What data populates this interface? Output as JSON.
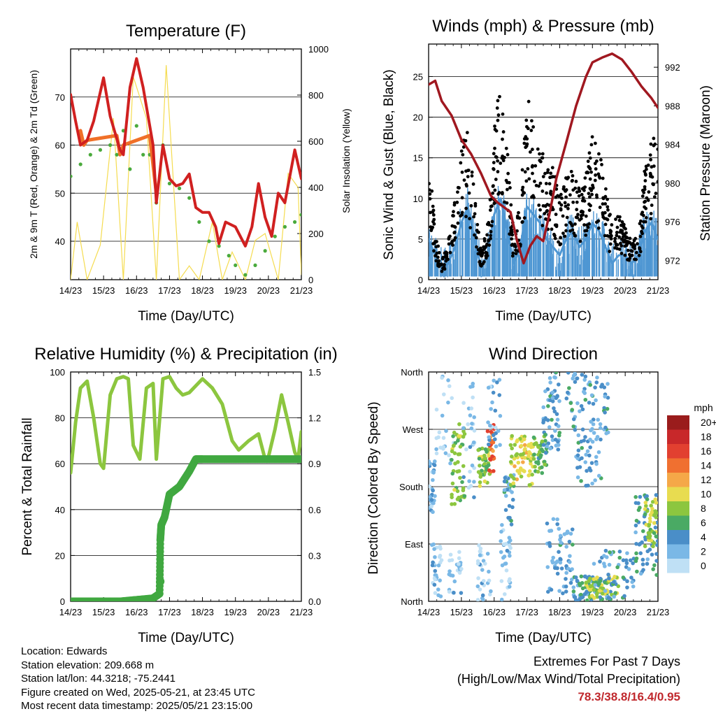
{
  "chart_data": [
    {
      "type": "line",
      "title": "Temperature (F)",
      "xlabel": "Time (Day/UTC)",
      "ylabel": "2m & 9m T (Red, Orange) & 2m Td (Green)",
      "ylabel_right": "Solar Insolation (Yellow)",
      "xticks": [
        "14/23",
        "15/23",
        "16/23",
        "17/23",
        "18/23",
        "19/23",
        "20/23",
        "21/23"
      ],
      "xlim": [
        0,
        7
      ],
      "ylim": [
        32,
        80
      ],
      "yticks": [
        40,
        50,
        60,
        70
      ],
      "ylim_right": [
        0,
        1000
      ],
      "yticks_right": [
        0,
        200,
        400,
        600,
        800,
        1000
      ],
      "grid": true,
      "colors": {
        "t2m": "#d02020",
        "t9m": "#f07028",
        "td": "#4aaa3c",
        "solar": "#f5dc50"
      },
      "series": [
        {
          "name": "2m T",
          "color": "#d02020",
          "x": [
            0,
            0.15,
            0.3,
            0.5,
            0.7,
            0.9,
            1.0,
            1.2,
            1.5,
            1.6,
            1.8,
            2.0,
            2.2,
            2.5,
            2.6,
            2.8,
            3.0,
            3.2,
            3.4,
            3.6,
            3.8,
            4.0,
            4.2,
            4.4,
            4.5,
            4.7,
            5.0,
            5.3,
            5.5,
            5.7,
            5.9,
            6.1,
            6.3,
            6.5,
            6.8,
            7.0
          ],
          "y": [
            70.5,
            65,
            60,
            61,
            65,
            71,
            74,
            66,
            59,
            58,
            72,
            78,
            72,
            60,
            48,
            60,
            53,
            51.5,
            52,
            54,
            47,
            46,
            46,
            43,
            39.5,
            44,
            43,
            39,
            43,
            52,
            45,
            41,
            50,
            48,
            59,
            53
          ]
        },
        {
          "name": "9m T",
          "color": "#f07028",
          "x": [
            0.3,
            0.4,
            0.5,
            1.4,
            1.5,
            1.6,
            2.4,
            2.6
          ],
          "y": [
            63,
            60,
            61,
            62,
            58,
            60,
            62,
            50
          ]
        },
        {
          "name": "2m Td",
          "color": "#4aaa3c",
          "x": [
            0,
            0.3,
            0.6,
            0.9,
            1.2,
            1.4,
            1.6,
            1.8,
            2.0,
            2.2,
            2.4,
            2.6,
            2.8,
            3.0,
            3.3,
            3.6,
            3.9,
            4.2,
            4.5,
            4.8,
            5.0,
            5.3,
            5.6,
            5.9,
            6.2,
            6.5,
            6.8,
            7.0
          ],
          "y": [
            53.5,
            56,
            58,
            59,
            60,
            58,
            63,
            55,
            64,
            58,
            58,
            48,
            60,
            52,
            51,
            49,
            44,
            40,
            39,
            37,
            35,
            33,
            35,
            38,
            41,
            43,
            44,
            45.5
          ]
        },
        {
          "name": "Solar Insolation",
          "color": "#f5dc50",
          "axis": "right",
          "x": [
            0,
            0.2,
            0.5,
            0.9,
            1.3,
            1.6,
            1.9,
            2.3,
            2.6,
            2.9,
            3.3,
            3.6,
            3.9,
            4.3,
            4.6,
            4.9,
            5.3,
            5.6,
            5.9,
            6.3,
            6.6,
            6.9,
            7.0
          ],
          "y": [
            0,
            250,
            0,
            150,
            700,
            0,
            880,
            700,
            0,
            930,
            0,
            60,
            0,
            250,
            0,
            120,
            0,
            170,
            200,
            0,
            460,
            400,
            20
          ]
        }
      ]
    },
    {
      "type": "line",
      "title": "Winds (mph) & Pressure (mb)",
      "xlabel": "Time (Day/UTC)",
      "ylabel": "Sonic Wind & Gust (Blue, Black)",
      "ylabel_right": "Station Pressure (Maroon)",
      "xticks": [
        "14/23",
        "15/23",
        "16/23",
        "17/23",
        "18/23",
        "19/23",
        "20/23",
        "21/23"
      ],
      "xlim": [
        0,
        7
      ],
      "ylim": [
        0,
        29
      ],
      "yticks": [
        0,
        5,
        10,
        15,
        20,
        25
      ],
      "ylim_right": [
        970.0,
        994.4
      ],
      "yticks_right": [
        972,
        976,
        980,
        984,
        988,
        992
      ],
      "grid": true,
      "colors": {
        "wind": "#4f97d3",
        "gust": "#000000",
        "pressure": "#a01820"
      },
      "series": [
        {
          "name": "Sonic Wind",
          "color": "#4f97d3",
          "x": [
            0,
            0.2,
            0.4,
            0.6,
            0.8,
            1.0,
            1.2,
            1.4,
            1.6,
            1.8,
            2.0,
            2.2,
            2.4,
            2.6,
            2.8,
            3.0,
            3.2,
            3.4,
            3.6,
            3.8,
            4.0,
            4.2,
            4.4,
            4.6,
            4.8,
            5.0,
            5.2,
            5.4,
            5.6,
            5.8,
            6.0,
            6.2,
            6.4,
            6.6,
            6.8,
            7.0
          ],
          "y": [
            5,
            3,
            1.5,
            2,
            4,
            7,
            9,
            5,
            1.5,
            3,
            8,
            10,
            6,
            2,
            4,
            9,
            8,
            7,
            5,
            4,
            3,
            5,
            6,
            4,
            5,
            7,
            6,
            4,
            2,
            3,
            3,
            2,
            3,
            6,
            7,
            5
          ]
        },
        {
          "name": "Gust",
          "color": "#000000",
          "x": [
            0,
            0.2,
            0.4,
            0.6,
            0.8,
            1.0,
            1.2,
            1.4,
            1.6,
            1.8,
            2.0,
            2.2,
            2.4,
            2.6,
            2.8,
            3.0,
            3.2,
            3.4,
            3.6,
            3.8,
            4.0,
            4.2,
            4.4,
            4.6,
            4.8,
            5.0,
            5.2,
            5.4,
            5.6,
            5.8,
            6.0,
            6.2,
            6.4,
            6.6,
            6.8,
            7.0
          ],
          "y": [
            15,
            5,
            2,
            4,
            9,
            15,
            16,
            10,
            3,
            6,
            16,
            25,
            14,
            5,
            9,
            20,
            18,
            15,
            13,
            12,
            9,
            11,
            12,
            10,
            11,
            16,
            14,
            10,
            6,
            7,
            6,
            4,
            5,
            12,
            15,
            16
          ]
        },
        {
          "name": "Station Pressure",
          "color": "#a01820",
          "axis": "right",
          "x": [
            0,
            0.2,
            0.4,
            0.7,
            1.0,
            1.3,
            1.6,
            1.9,
            2.1,
            2.3,
            2.5,
            2.7,
            2.9,
            3.1,
            3.3,
            3.5,
            3.7,
            3.9,
            4.2,
            4.5,
            4.8,
            5.0,
            5.3,
            5.6,
            5.9,
            6.2,
            6.5,
            6.8,
            7.0
          ],
          "y": [
            990.2,
            990.6,
            988.5,
            987,
            984.5,
            983,
            981,
            978.7,
            978,
            977.5,
            977,
            974,
            971.7,
            973.5,
            974.5,
            974,
            977,
            980.5,
            984.2,
            988,
            991,
            992.5,
            993,
            993.4,
            992.8,
            991.5,
            990,
            988.8,
            987.8
          ]
        }
      ]
    },
    {
      "type": "line",
      "title": "Relative Humidity (%) & Precipitation (in)",
      "xlabel": "Time (Day/UTC)",
      "ylabel": "Percent & Total Rainfall",
      "xticks": [
        "14/23",
        "15/23",
        "16/23",
        "17/23",
        "18/23",
        "19/23",
        "20/23",
        "21/23"
      ],
      "xlim": [
        0,
        7
      ],
      "ylim": [
        0,
        100
      ],
      "yticks": [
        0,
        20,
        40,
        60,
        80,
        100
      ],
      "ylim_right": [
        0,
        1.5
      ],
      "yticks_right": [
        "0.0",
        "0.3",
        "0.6",
        "0.9",
        "1.2",
        "1.5"
      ],
      "grid": true,
      "colors": {
        "rh": "#8cc63f",
        "precip": "#40a840"
      },
      "series": [
        {
          "name": "Relative Humidity",
          "color": "#8cc63f",
          "x": [
            0,
            0.15,
            0.3,
            0.5,
            0.7,
            0.9,
            1.0,
            1.2,
            1.4,
            1.6,
            1.75,
            1.9,
            2.1,
            2.3,
            2.5,
            2.6,
            2.8,
            3.0,
            3.2,
            3.4,
            3.6,
            3.8,
            4.0,
            4.3,
            4.6,
            4.9,
            5.1,
            5.4,
            5.7,
            5.9,
            6.0,
            6.2,
            6.4,
            6.6,
            6.8,
            6.9,
            7.0
          ],
          "y": [
            56,
            78,
            93,
            96,
            80,
            60,
            58,
            90,
            97,
            98,
            97,
            68,
            62,
            93,
            95,
            62,
            97,
            98,
            93,
            90,
            91,
            94,
            97,
            93,
            86,
            70,
            66,
            70,
            73,
            62,
            63,
            75,
            90,
            78,
            65,
            62,
            74
          ]
        },
        {
          "name": "Precipitation",
          "color": "#40a840",
          "axis": "right",
          "x": [
            0,
            0.5,
            1.0,
            1.5,
            2.0,
            2.5,
            2.7,
            2.72,
            2.75,
            2.85,
            3.0,
            3.3,
            3.6,
            3.8,
            4.0,
            4.5,
            5.0,
            5.5,
            6.0,
            6.5,
            7.0
          ],
          "y": [
            0,
            0,
            0,
            0,
            0.01,
            0.02,
            0.05,
            0.4,
            0.5,
            0.55,
            0.7,
            0.75,
            0.85,
            0.93,
            0.93,
            0.93,
            0.93,
            0.93,
            0.93,
            0.93,
            0.93
          ]
        }
      ]
    },
    {
      "type": "scatter",
      "title": "Wind Direction",
      "xlabel": "Time (Day/UTC)",
      "ylabel": "Direction (Colored By Speed)",
      "xticks": [
        "14/23",
        "15/23",
        "16/23",
        "17/23",
        "18/23",
        "19/23",
        "20/23",
        "21/23"
      ],
      "xlim": [
        0,
        7
      ],
      "ylim": [
        0,
        360
      ],
      "yticks": [
        "North",
        "East",
        "South",
        "West",
        "North"
      ],
      "grid": true,
      "colorbar": {
        "title": "mph",
        "labels": [
          "20+",
          "18",
          "16",
          "14",
          "12",
          "10",
          "8",
          "6",
          "4",
          "2",
          "0"
        ],
        "colors": [
          "#9a1c1c",
          "#c8282a",
          "#e24030",
          "#f07030",
          "#f5a848",
          "#e8dc50",
          "#8cc63f",
          "#4aaa64",
          "#4a8ec8",
          "#7ab8e6",
          "#bfe0f5"
        ]
      },
      "clusters": [
        {
          "x0": 0.0,
          "x1": 0.2,
          "y0": 140,
          "y1": 220,
          "speed": 2,
          "n": 30
        },
        {
          "x0": 0.1,
          "x1": 0.4,
          "y0": 0,
          "y1": 90,
          "speed": 1,
          "n": 30
        },
        {
          "x0": 0.2,
          "x1": 0.8,
          "y0": 200,
          "y1": 360,
          "speed": 0,
          "n": 25
        },
        {
          "x0": 0.6,
          "x1": 1.0,
          "y0": 10,
          "y1": 80,
          "speed": 1,
          "n": 25
        },
        {
          "x0": 0.7,
          "x1": 1.1,
          "y0": 150,
          "y1": 280,
          "speed": 7,
          "n": 50
        },
        {
          "x0": 1.0,
          "x1": 1.4,
          "y0": 160,
          "y1": 350,
          "speed": 1,
          "n": 30
        },
        {
          "x0": 1.5,
          "x1": 1.9,
          "y0": 0,
          "y1": 90,
          "speed": 1,
          "n": 30
        },
        {
          "x0": 1.5,
          "x1": 1.9,
          "y0": 180,
          "y1": 240,
          "speed": 7,
          "n": 40
        },
        {
          "x0": 1.8,
          "x1": 2.0,
          "y0": 200,
          "y1": 280,
          "speed": 14,
          "n": 25
        },
        {
          "x0": 1.8,
          "x1": 2.2,
          "y0": 240,
          "y1": 360,
          "speed": 2,
          "n": 25
        },
        {
          "x0": 2.2,
          "x1": 2.5,
          "y0": 0,
          "y1": 120,
          "speed": 1,
          "n": 30
        },
        {
          "x0": 2.3,
          "x1": 2.6,
          "y0": 120,
          "y1": 200,
          "speed": 3,
          "n": 25
        },
        {
          "x0": 2.5,
          "x1": 3.2,
          "y0": 180,
          "y1": 260,
          "speed": 9,
          "n": 70
        },
        {
          "x0": 3.2,
          "x1": 3.6,
          "y0": 200,
          "y1": 260,
          "speed": 6,
          "n": 40
        },
        {
          "x0": 3.5,
          "x1": 4.0,
          "y0": 230,
          "y1": 360,
          "speed": 3,
          "n": 60
        },
        {
          "x0": 3.6,
          "x1": 4.4,
          "y0": 0,
          "y1": 140,
          "speed": 3,
          "n": 60
        },
        {
          "x0": 4.2,
          "x1": 5.5,
          "y0": 260,
          "y1": 360,
          "speed": 3,
          "n": 70
        },
        {
          "x0": 4.5,
          "x1": 5.3,
          "y0": 180,
          "y1": 260,
          "speed": 3,
          "n": 40
        },
        {
          "x0": 4.4,
          "x1": 5.6,
          "y0": 0,
          "y1": 40,
          "speed": 4,
          "n": 80
        },
        {
          "x0": 4.8,
          "x1": 5.8,
          "y0": 5,
          "y1": 40,
          "speed": 8,
          "n": 50
        },
        {
          "x0": 5.0,
          "x1": 6.3,
          "y0": 5,
          "y1": 80,
          "speed": 3,
          "n": 50
        },
        {
          "x0": 6.3,
          "x1": 7.0,
          "y0": 40,
          "y1": 170,
          "speed": 4,
          "n": 60
        },
        {
          "x0": 6.6,
          "x1": 7.0,
          "y0": 80,
          "y1": 160,
          "speed": 8,
          "n": 40
        }
      ]
    }
  ],
  "info": {
    "location": "Location: Edwards",
    "elevation": "Station elevation: 209.668 m",
    "latlon": "Station lat/lon: 44.3218; -75.2441",
    "created": "Figure created on Wed, 2025-05-21, at 23:45 UTC",
    "recent": "Most recent data timestamp: 2025/05/21 23:15:00"
  },
  "extremes": {
    "title": "Extremes For Past 7 Days",
    "subtitle": "(High/Low/Max Wind/Total Precipitation)",
    "values": "78.3/38.8/16.4/0.95"
  }
}
